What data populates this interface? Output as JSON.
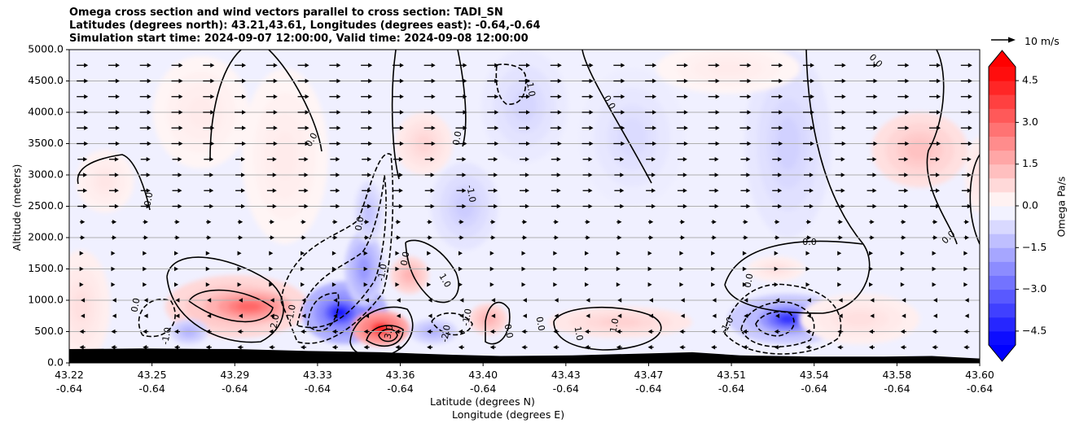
{
  "chart_data": {
    "type": "heatmap",
    "title_lines": [
      "Omega cross section and wind vectors parallel to cross section: TADI_SN",
      "Latitudes (degrees north): 43.21,43.61, Longitudes (degrees east): -0.64,-0.64",
      "Simulation start time: 2024-09-07 12:00:00, Valid time: 2024-09-08 12:00:00"
    ],
    "ylabel": "Altitude (meters)",
    "xlabel": "Latitude (degrees N)",
    "xlabel2": "Longitude (degrees E)",
    "ylim": [
      0,
      5000
    ],
    "yticks": [
      "0.0",
      "500.0",
      "1000.0",
      "1500.0",
      "2000.0",
      "2500.0",
      "3000.0",
      "3500.0",
      "4000.0",
      "4500.0",
      "5000.0"
    ],
    "xticks": [
      {
        "lat": "43.22",
        "lon": "-0.64"
      },
      {
        "lat": "43.25",
        "lon": "-0.64"
      },
      {
        "lat": "43.29",
        "lon": "-0.64"
      },
      {
        "lat": "43.33",
        "lon": "-0.64"
      },
      {
        "lat": "43.36",
        "lon": "-0.64"
      },
      {
        "lat": "43.40",
        "lon": "-0.64"
      },
      {
        "lat": "43.43",
        "lon": "-0.64"
      },
      {
        "lat": "43.47",
        "lon": "-0.64"
      },
      {
        "lat": "43.51",
        "lon": "-0.64"
      },
      {
        "lat": "43.54",
        "lon": "-0.64"
      },
      {
        "lat": "43.58",
        "lon": "-0.64"
      },
      {
        "lat": "43.60",
        "lon": "-0.64"
      }
    ],
    "grid": "horizontal",
    "colorbar": {
      "label": "Omega Pa/s",
      "range": [
        -5,
        5
      ],
      "ticks": [
        "−4.5",
        "−3.0",
        "−1.5",
        "0.0",
        "1.5",
        "3.0",
        "4.5"
      ],
      "tick_values": [
        -4.5,
        -3.0,
        -1.5,
        0.0,
        1.5,
        3.0,
        4.5
      ],
      "levels": [
        -5,
        -4.5,
        -4,
        -3.5,
        -3,
        -2.5,
        -2,
        -1.5,
        -1,
        -0.5,
        0,
        0.5,
        1,
        1.5,
        2,
        2.5,
        3,
        3.5,
        4,
        4.5,
        5
      ],
      "colormap": "bwr"
    },
    "wind_key": "10 m/s",
    "contour_labels": [
      "0.0",
      "-1.0",
      "1.0",
      "2.0",
      "-2.0",
      "3.0"
    ],
    "features": [
      {
        "kind": "downdraft-core",
        "lat": 43.33,
        "alt": 800,
        "omega": -4.0
      },
      {
        "kind": "updraft-core",
        "lat": 43.35,
        "alt": 550,
        "omega": 4.5
      },
      {
        "kind": "downdraft-core",
        "lat": 43.52,
        "alt": 700,
        "omega": -3.5
      },
      {
        "kind": "updraft",
        "lat": 43.29,
        "alt": 900,
        "omega": 2.5
      },
      {
        "kind": "downdraft",
        "lat": 43.34,
        "alt": 1500,
        "omega": -2.5
      },
      {
        "kind": "downdraft",
        "lat": 43.41,
        "alt": 4400,
        "omega": -1.2
      }
    ]
  }
}
